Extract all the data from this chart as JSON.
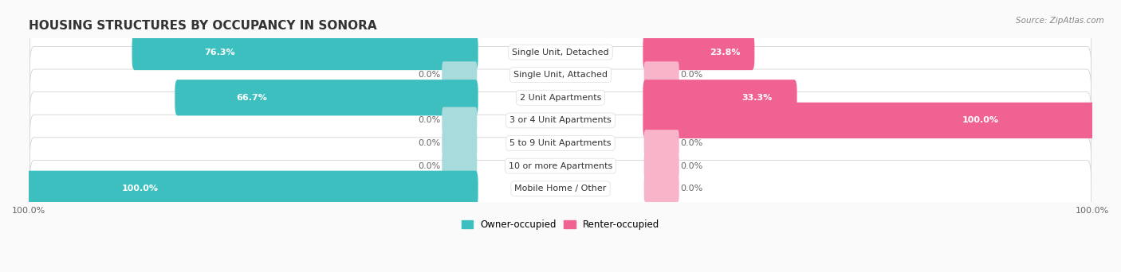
{
  "title": "HOUSING STRUCTURES BY OCCUPANCY IN SONORA",
  "source": "Source: ZipAtlas.com",
  "categories": [
    "Single Unit, Detached",
    "Single Unit, Attached",
    "2 Unit Apartments",
    "3 or 4 Unit Apartments",
    "5 to 9 Unit Apartments",
    "10 or more Apartments",
    "Mobile Home / Other"
  ],
  "owner_values": [
    76.3,
    0.0,
    66.7,
    0.0,
    0.0,
    0.0,
    100.0
  ],
  "renter_values": [
    23.8,
    0.0,
    33.3,
    100.0,
    0.0,
    0.0,
    0.0
  ],
  "owner_color": "#3DBFBF",
  "owner_color_light": "#A8DCDC",
  "renter_color": "#F06292",
  "renter_color_light": "#F8B4C8",
  "bg_color": "#FAFAFA",
  "row_bg": "#FFFFFF",
  "row_border": "#E0E0E0",
  "bar_height": 0.58,
  "title_fontsize": 11,
  "label_fontsize": 8,
  "category_fontsize": 8,
  "axis_label_fontsize": 8,
  "legend_fontsize": 8.5,
  "owner_label": "Owner-occupied",
  "renter_label": "Renter-occupied"
}
